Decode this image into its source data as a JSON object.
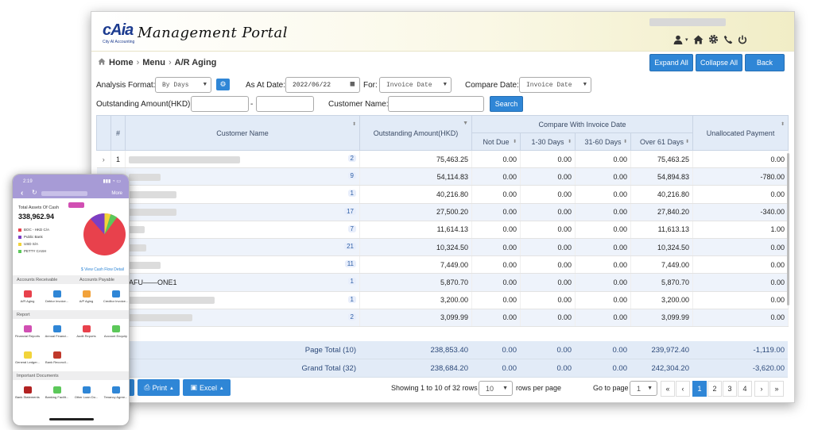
{
  "app": {
    "logo_text": "cAia",
    "logo_tagline": "City AI Accounting",
    "title": "Management Portal"
  },
  "header_icons": [
    "user-icon",
    "home-icon",
    "gear-icon",
    "phone-icon",
    "power-icon"
  ],
  "breadcrumb": {
    "home": "Home",
    "menu": "Menu",
    "page": "A/R Aging"
  },
  "actions": {
    "expand": "Expand All",
    "collapse": "Collapse All",
    "back": "Back"
  },
  "filters": {
    "analysis_label": "Analysis Format:",
    "analysis_value": "By Days",
    "as_at_label": "As At Date:",
    "as_at_value": "2022/06/22",
    "for_label": "For:",
    "for_value": "Invoice Date",
    "compare_label": "Compare Date:",
    "compare_value": "Invoice Date",
    "amount_label": "Outstanding Amount(HKD):",
    "amount_sep": "-",
    "customer_label": "Customer Name:",
    "search": "Search"
  },
  "table": {
    "group_header": "Compare With Invoice Date",
    "columns": {
      "no": "#",
      "name": "Customer Name",
      "outstanding": "Outstanding Amount(HKD)",
      "not_due": "Not Due",
      "d1_30": "1-30 Days",
      "d31_60": "31-60 Days",
      "over61": "Over 61 Days",
      "unalloc": "Unallocated Payment"
    },
    "rows": [
      {
        "no": "1",
        "name": "",
        "cnt": "2",
        "out": "75,463.25",
        "nd": "0.00",
        "a": "0.00",
        "b": "0.00",
        "c": "75,463.25",
        "u": "0.00"
      },
      {
        "no": "",
        "name": "",
        "cnt": "9",
        "out": "54,114.83",
        "nd": "0.00",
        "a": "0.00",
        "b": "0.00",
        "c": "54,894.83",
        "u": "-780.00"
      },
      {
        "no": "",
        "name": "",
        "cnt": "1",
        "out": "40,216.80",
        "nd": "0.00",
        "a": "0.00",
        "b": "0.00",
        "c": "40,216.80",
        "u": "0.00"
      },
      {
        "no": "",
        "name": "",
        "cnt": "17",
        "out": "27,500.20",
        "nd": "0.00",
        "a": "0.00",
        "b": "0.00",
        "c": "27,840.20",
        "u": "-340.00"
      },
      {
        "no": "",
        "name": "",
        "cnt": "7",
        "out": "11,614.13",
        "nd": "0.00",
        "a": "0.00",
        "b": "0.00",
        "c": "11,613.13",
        "u": "1.00"
      },
      {
        "no": "",
        "name": "",
        "cnt": "21",
        "out": "10,324.50",
        "nd": "0.00",
        "a": "0.00",
        "b": "0.00",
        "c": "10,324.50",
        "u": "0.00"
      },
      {
        "no": "",
        "name": "",
        "cnt": "11",
        "out": "7,449.00",
        "nd": "0.00",
        "a": "0.00",
        "b": "0.00",
        "c": "7,449.00",
        "u": "0.00"
      },
      {
        "no": "",
        "name": "AFU——ONE1",
        "cnt": "1",
        "out": "5,870.70",
        "nd": "0.00",
        "a": "0.00",
        "b": "0.00",
        "c": "5,870.70",
        "u": "0.00"
      },
      {
        "no": "",
        "name": "",
        "cnt": "1",
        "out": "3,200.00",
        "nd": "0.00",
        "a": "0.00",
        "b": "0.00",
        "c": "3,200.00",
        "u": "0.00"
      },
      {
        "no": "",
        "name": "",
        "cnt": "2",
        "out": "3,099.99",
        "nd": "0.00",
        "a": "0.00",
        "b": "0.00",
        "c": "3,099.99",
        "u": "0.00"
      }
    ]
  },
  "totals": [
    {
      "label": "Page Total (10)",
      "out": "238,853.40",
      "nd": "0.00",
      "a": "0.00",
      "b": "0.00",
      "c": "239,972.40",
      "u": "-1,119.00"
    },
    {
      "label": "Grand Total (32)",
      "out": "238,684.20",
      "nd": "0.00",
      "a": "0.00",
      "b": "0.00",
      "c": "242,304.20",
      "u": "-3,620.00"
    }
  ],
  "footer": {
    "print": "Print",
    "excel": "Excel",
    "showing": "Showing 1 to 10 of 32 rows",
    "per_page": "10",
    "rows_per_page": "rows per page",
    "goto": "Go to page",
    "goto_value": "1",
    "pages": [
      "1",
      "2",
      "3",
      "4"
    ]
  },
  "phone": {
    "time": "2:19",
    "more": "More",
    "assets_label": "Total Assets Of Cash",
    "assets_value": "338,962.94",
    "legend": [
      {
        "name": "BOC - HKD C/A",
        "color": "#e8414c"
      },
      {
        "name": "Public Bank",
        "color": "#7b3fc4"
      },
      {
        "name": "USD S/A",
        "color": "#f2d43a"
      },
      {
        "name": "PETTY CASH",
        "color": "#5cc85a"
      }
    ],
    "cash_flow": "View Cash Flow Detail",
    "sec1a": "Accounts Receivable",
    "sec1b": "Accounts Payable",
    "row1": [
      "A/R Aging",
      "Debtor Invoice...",
      "A/P Aging",
      "Creditor Invoice..."
    ],
    "sec2": "Report",
    "row2": [
      "Financial Reports",
      "Annual Financi...",
      "Audit Reports",
      "Account Enquiry"
    ],
    "row3": [
      "General Ledger...",
      "Bank Reconcil..."
    ],
    "sec3": "Important Documents",
    "row4": [
      "Bank Statements",
      "Banking Facilit...",
      "Other Loan Do...",
      "Tenancy Agree..."
    ]
  }
}
